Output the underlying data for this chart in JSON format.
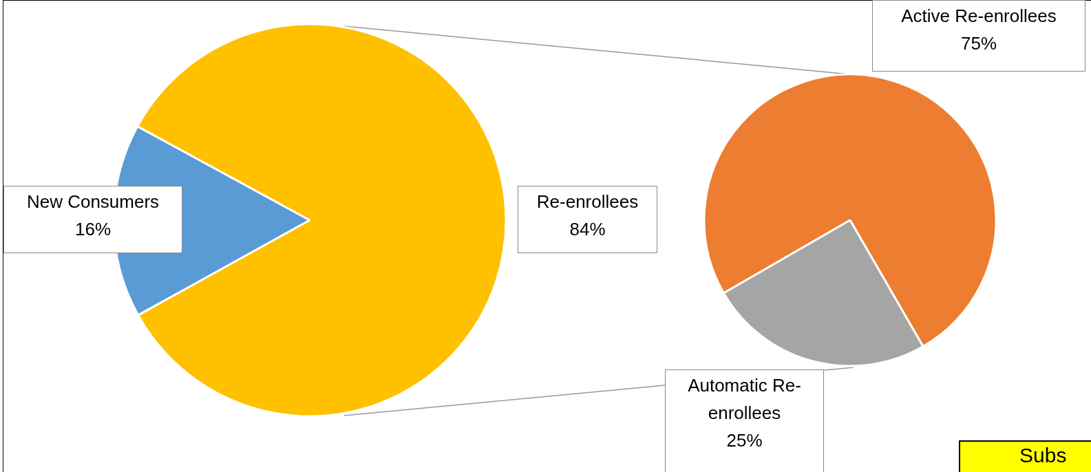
{
  "chart_data": [
    {
      "type": "pie",
      "categories": [
        "New Consumers",
        "Re-enrollees"
      ],
      "values": [
        16,
        84
      ],
      "colors": [
        "#5b9bd5",
        "#ffc000"
      ],
      "value_labels": [
        "16%",
        "84%"
      ]
    },
    {
      "type": "pie",
      "categories": [
        "Active Re-enrollees",
        "Automatic Re-enrollees"
      ],
      "values": [
        75,
        25
      ],
      "colors": [
        "#ed7d31",
        "#a5a5a5"
      ],
      "value_labels": [
        "75%",
        "25%"
      ],
      "annotations": [
        "Subs"
      ]
    }
  ]
}
